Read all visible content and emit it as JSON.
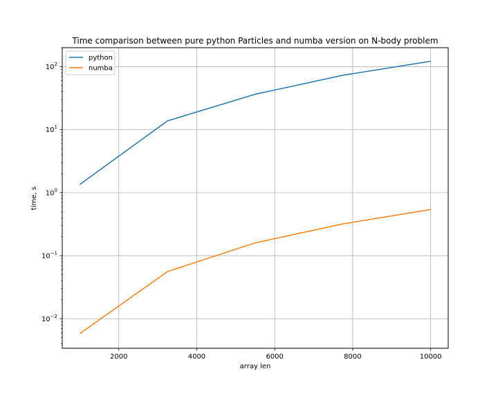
{
  "chart_data": {
    "type": "line",
    "title": "Time comparison between pure python Particles and numba version on N-body problem",
    "xlabel": "array len",
    "ylabel": "time, s",
    "yscale": "log",
    "xlim": [
      550,
      10450
    ],
    "ylim": [
      0.0034,
      200
    ],
    "xticks": [
      2000,
      4000,
      6000,
      8000,
      10000
    ],
    "xtick_labels": [
      "2000",
      "4000",
      "6000",
      "8000",
      "10000"
    ],
    "yticks": [
      0.01,
      0.1,
      1,
      10,
      100
    ],
    "ytick_labels": [
      {
        "base": "10",
        "exp": "−2"
      },
      {
        "base": "10",
        "exp": "−1"
      },
      {
        "base": "10",
        "exp": "0"
      },
      {
        "base": "10",
        "exp": "1"
      },
      {
        "base": "10",
        "exp": "2"
      }
    ],
    "grid": true,
    "legend_position": "top-left",
    "x": [
      1000,
      3250,
      5500,
      7750,
      10000
    ],
    "series": [
      {
        "name": "python",
        "color": "#1f77b4",
        "values": [
          1.35,
          13.8,
          36.5,
          73.0,
          122.0
        ]
      },
      {
        "name": "numba",
        "color": "#ff7f0e",
        "values": [
          0.0058,
          0.056,
          0.16,
          0.32,
          0.54
        ]
      }
    ]
  }
}
